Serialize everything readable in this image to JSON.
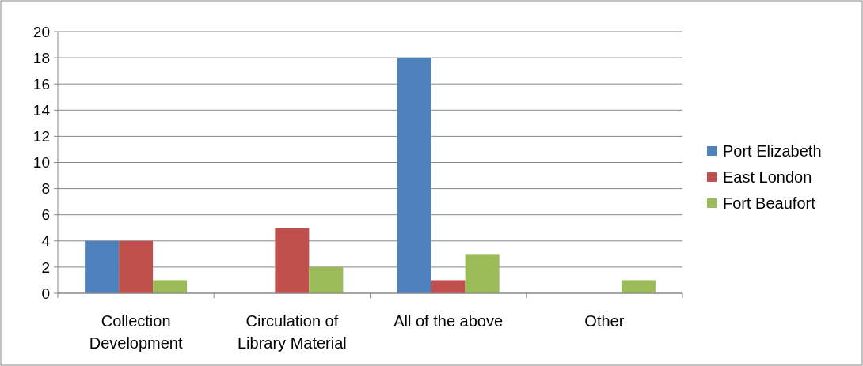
{
  "chart_data": {
    "type": "bar",
    "categories": [
      "Collection Development",
      "Circulation of Library Material",
      "All of the above",
      "Other"
    ],
    "series": [
      {
        "name": "Port Elizabeth",
        "color": "#4f81bd",
        "values": [
          4,
          0,
          18,
          0
        ]
      },
      {
        "name": "East London",
        "color": "#c0504d",
        "values": [
          4,
          5,
          1,
          0
        ]
      },
      {
        "name": "Fort Beaufort",
        "color": "#9bbb59",
        "values": [
          1,
          2,
          3,
          1
        ]
      }
    ],
    "ylim": [
      0,
      20
    ],
    "yticks": [
      0,
      2,
      4,
      6,
      8,
      10,
      12,
      14,
      16,
      18,
      20
    ],
    "grid": "y",
    "legend": "right"
  }
}
